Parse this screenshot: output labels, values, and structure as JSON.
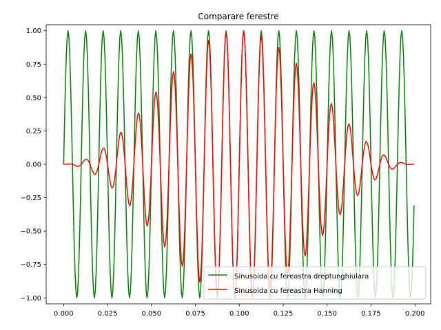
{
  "chart_data": {
    "type": "line",
    "title": "Comparare ferestre",
    "xlabel": "",
    "ylabel": "",
    "xlim": [
      -0.00995,
      0.20895
    ],
    "ylim": [
      -1.045,
      1.045
    ],
    "x_ticks": [
      0.0,
      0.025,
      0.05,
      0.075,
      0.1,
      0.125,
      0.15,
      0.175,
      0.2
    ],
    "x_tick_labels": [
      "0.000",
      "0.025",
      "0.050",
      "0.075",
      "0.100",
      "0.125",
      "0.150",
      "0.175",
      "0.200"
    ],
    "y_ticks": [
      -1.0,
      -0.75,
      -0.5,
      -0.25,
      0.0,
      0.25,
      0.5,
      0.75,
      1.0
    ],
    "y_tick_labels": [
      "−1.00",
      "−0.75",
      "−0.50",
      "−0.25",
      "0.00",
      "0.25",
      "0.50",
      "0.75",
      "1.00"
    ],
    "grid": false,
    "legend_position": "lower-right",
    "signal": {
      "frequency_hz": 100,
      "sample_rate_hz": 2000,
      "n_samples": 400,
      "x_start": 0.0,
      "x_end": 0.1995
    },
    "series": [
      {
        "name": "Sinusoida cu fereastra dreptunghiulara",
        "color": "#008000",
        "window": "rectangular",
        "amplitude": 1.0
      },
      {
        "name": "Sinusoida cu fereastra Hanning",
        "color": "#ff0000",
        "window": "hanning",
        "amplitude": 1.0
      }
    ]
  }
}
